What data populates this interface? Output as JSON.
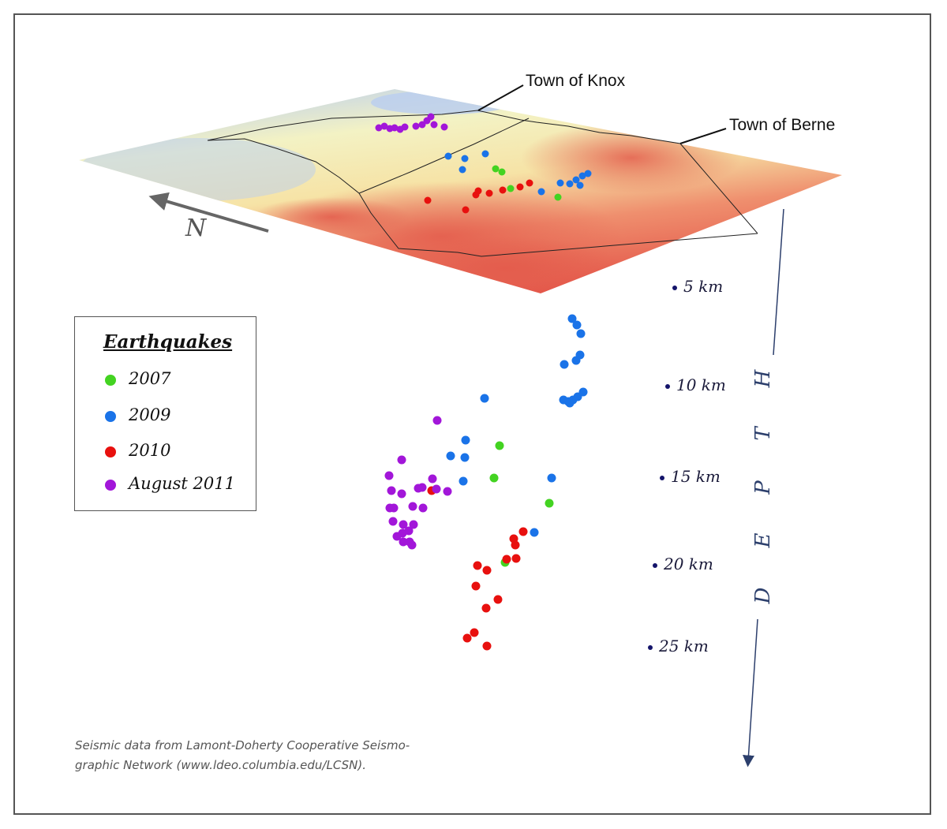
{
  "labels": {
    "town_knox": "Town of Knox",
    "town_berne": "Town of Berne",
    "north": "N",
    "depth_word": [
      "D",
      "E",
      "P",
      "T",
      "H"
    ]
  },
  "depth_ticks": [
    "5 km",
    "10 km",
    "15 km",
    "20 km",
    "25 km"
  ],
  "legend": {
    "title": "Earthquakes",
    "items": [
      {
        "label": "2007",
        "color": "#43d321"
      },
      {
        "label": "2009",
        "color": "#1a73e8"
      },
      {
        "label": "2010",
        "color": "#e8100e"
      },
      {
        "label": "August 2011",
        "color": "#a216d9"
      }
    ]
  },
  "credit": [
    "Seismic data from Lamont-Doherty Cooperative Seismo-",
    "graphic Network (www.ldeo.columbia.edu/LCSN)."
  ]
}
